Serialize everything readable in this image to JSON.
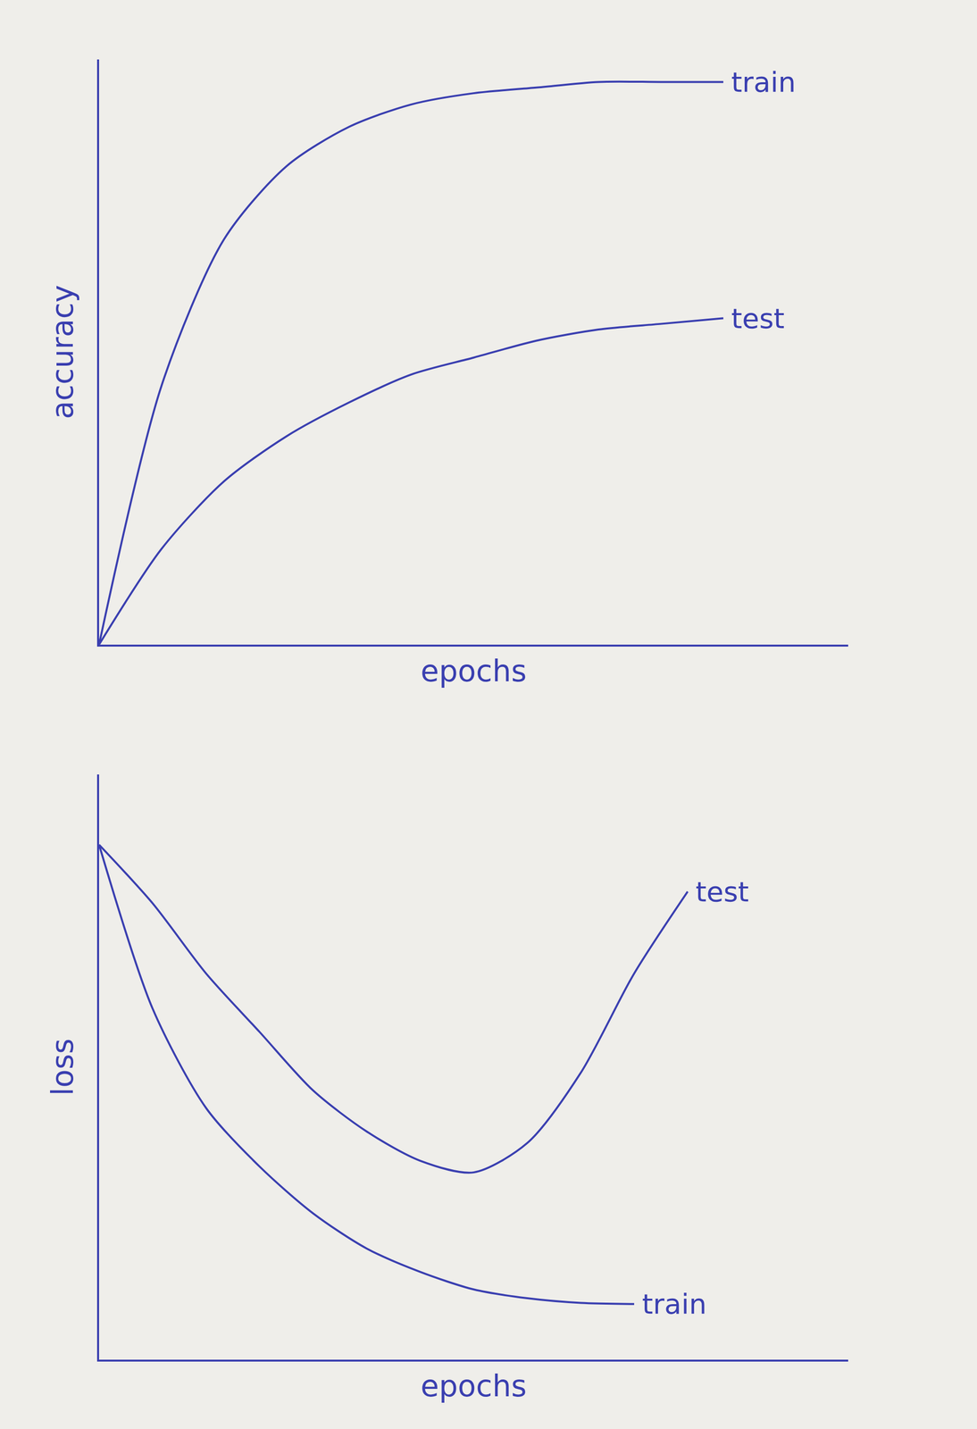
{
  "chart_data": [
    {
      "type": "line",
      "x_label": "epochs",
      "y_label": "accuracy",
      "x": [
        0,
        1,
        2,
        3,
        4,
        5,
        6,
        7,
        8,
        9,
        10
      ],
      "xlim": [
        0,
        12
      ],
      "ylim": [
        0,
        104
      ],
      "tick_labels": false,
      "grid": false,
      "series": [
        {
          "name": "train",
          "color": "#3a3fb0",
          "values": [
            0,
            46,
            72,
            85,
            92,
            96,
            98,
            99,
            100,
            100,
            100
          ]
        },
        {
          "name": "test",
          "color": "#3a3fb0",
          "values": [
            0,
            17,
            29,
            37,
            43,
            48,
            51,
            54,
            56,
            57,
            58
          ]
        }
      ]
    },
    {
      "type": "line",
      "x_label": "epochs",
      "y_label": "loss",
      "x": [
        0,
        1,
        2,
        3,
        4,
        5,
        6,
        7,
        8,
        9,
        10,
        11
      ],
      "xlim": [
        0,
        14
      ],
      "ylim": [
        0,
        100
      ],
      "tick_labels": false,
      "grid": false,
      "series": [
        {
          "name": "test",
          "color": "#3a3fb0",
          "values": [
            88,
            78,
            66,
            56,
            46,
            39,
            34,
            32,
            37,
            49,
            66,
            80
          ]
        },
        {
          "name": "train",
          "color": "#3a3fb0",
          "values": [
            88,
            60,
            43,
            33,
            25,
            19,
            15,
            12,
            10.5,
            9.7,
            9.5,
            null
          ]
        }
      ]
    }
  ]
}
